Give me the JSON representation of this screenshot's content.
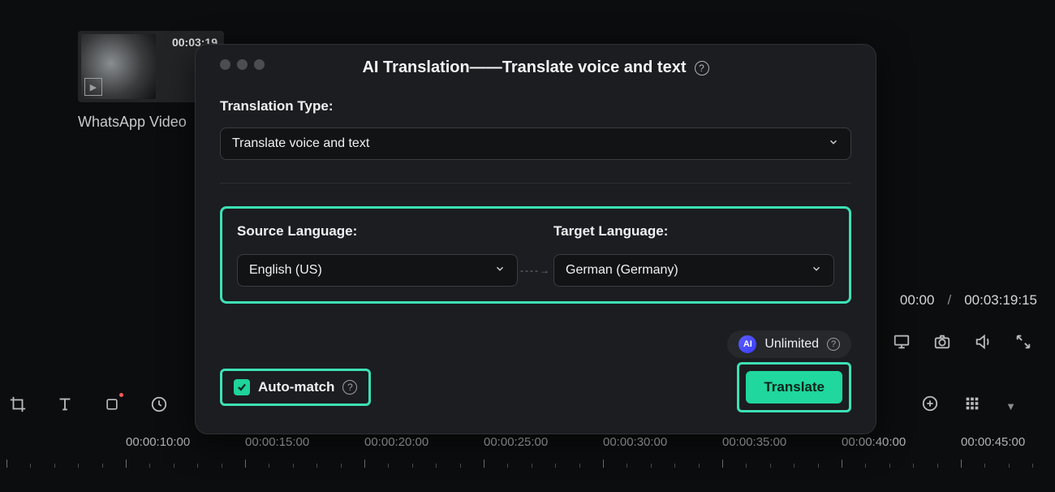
{
  "colors": {
    "bg": "#0c0d0e",
    "panel": "#1b1d20",
    "input_bg": "#121315",
    "border": "#3a3c3f",
    "highlight": "#3de0b5",
    "accent": "#20d79e",
    "text": "#eef0f2",
    "muted": "#b0b2b5"
  },
  "clip": {
    "duration_badge": "00:03:19",
    "label": "WhatsApp Video"
  },
  "player": {
    "current_time": "00:00",
    "separator": "/",
    "total_time": "00:03:19:15"
  },
  "modal": {
    "title": "AI Translation——Translate voice and text",
    "type_label": "Translation Type:",
    "type_value": "Translate voice and text",
    "source_label": "Source Language:",
    "target_label": "Target Language:",
    "source_value": "English (US)",
    "target_value": "German (Germany)",
    "plan_badge": "AI",
    "plan_text": "Unlimited",
    "auto_match_label": "Auto-match",
    "auto_match_checked": true,
    "translate_label": "Translate"
  },
  "timeline": {
    "labels": [
      "",
      "00:00:10:00",
      "00:00:15:00",
      "00:00:20:00",
      "00:00:25:00",
      "00:00:30:00",
      "00:00:35:00",
      "00:00:40:00",
      "00:00:45:00"
    ],
    "major_tick_spacing_px": 147,
    "minor_per_major": 5
  }
}
